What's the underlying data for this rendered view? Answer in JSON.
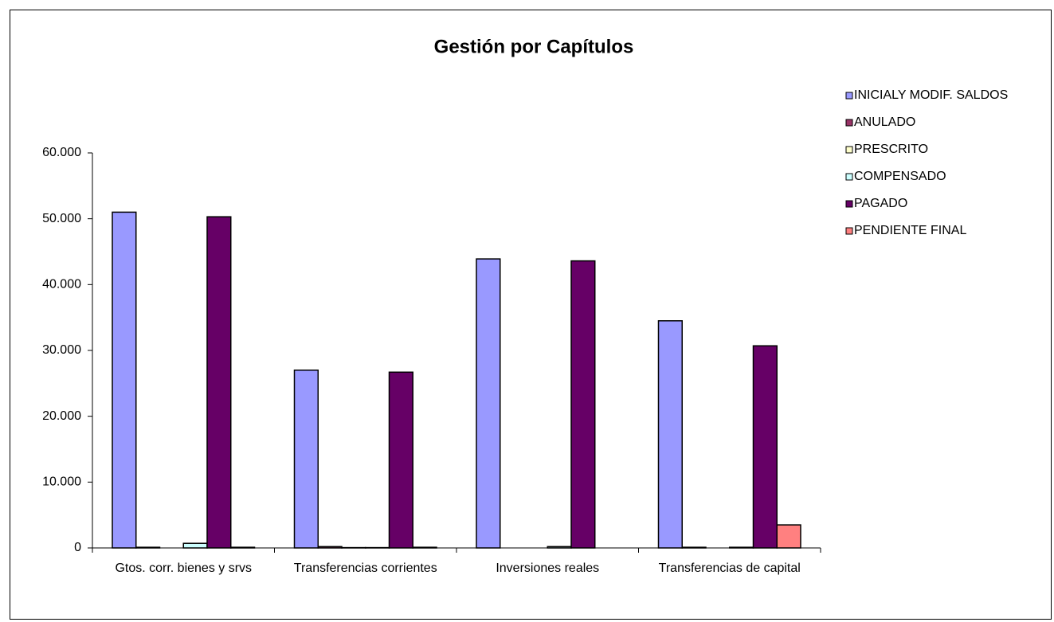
{
  "chart_data": {
    "type": "bar",
    "title": "Gestión por Capítulos",
    "categories": [
      "Gtos. corr. bienes y srvs",
      "Transferencias corrientes",
      "Inversiones reales",
      "Transferencias de capital"
    ],
    "series": [
      {
        "name": "INICIALY MODIF. SALDOS",
        "color": "#9999FF",
        "values": [
          51000,
          27000,
          43900,
          34500
        ]
      },
      {
        "name": "ANULADO",
        "color": "#993366",
        "values": [
          100,
          200,
          0,
          100
        ]
      },
      {
        "name": "PRESCRITO",
        "color": "#FFFFCC",
        "values": [
          0,
          50,
          0,
          0
        ]
      },
      {
        "name": "COMPENSADO",
        "color": "#CCFFFF",
        "values": [
          700,
          50,
          200,
          100
        ]
      },
      {
        "name": "PAGADO",
        "color": "#660066",
        "values": [
          50300,
          26700,
          43600,
          30700
        ]
      },
      {
        "name": "PENDIENTE FINAL",
        "color": "#FF8080",
        "values": [
          100,
          100,
          0,
          3500
        ]
      }
    ],
    "ylim": [
      0,
      60000
    ],
    "yticks": [
      0,
      {
        "value": 10000,
        "label": "10.000"
      },
      {
        "value": 20000,
        "label": "20.000"
      },
      {
        "value": 30000,
        "label": "30.000"
      },
      {
        "value": 40000,
        "label": "40.000"
      },
      {
        "value": 50000,
        "label": "50.000"
      },
      {
        "value": 60000,
        "label": "60.000"
      }
    ],
    "grid": false,
    "legend": "right"
  }
}
